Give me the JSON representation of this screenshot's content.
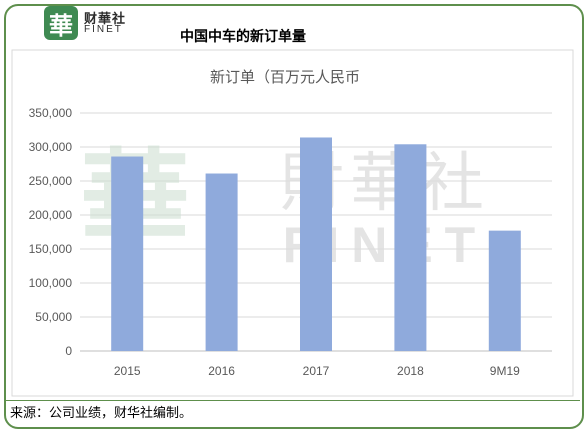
{
  "brand": {
    "logo_char": "華",
    "name": "财華社",
    "name_en": "FINET",
    "logo_color": "#3f8a52",
    "border_color": "#5e8f4c"
  },
  "header": {
    "title": "中国中车的新订单量"
  },
  "watermark": {
    "name": "財華社",
    "name_en": "FINET",
    "logo_char": "華"
  },
  "chart_data": {
    "type": "bar",
    "title": "新订单（百万元人民币",
    "categories": [
      "2015",
      "2016",
      "2017",
      "2018",
      "9M19"
    ],
    "values": [
      286000,
      261000,
      314000,
      304000,
      177000
    ],
    "ylim": [
      0,
      350000
    ],
    "yticks": [
      0,
      50000,
      100000,
      150000,
      200000,
      250000,
      300000,
      350000
    ],
    "ytick_labels": [
      "0",
      "50,000",
      "100,000",
      "150,000",
      "200,000",
      "250,000",
      "300,000",
      "350,000"
    ],
    "xlabel": "",
    "ylabel": "",
    "grid": true,
    "legend": "none",
    "bar_color": "#8faadc"
  },
  "footnote": "来源：公司业绩，财华社编制。"
}
